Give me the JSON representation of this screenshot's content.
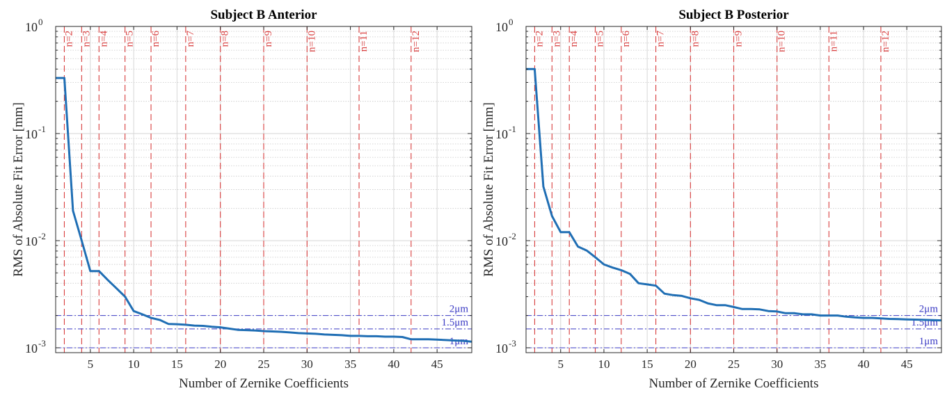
{
  "chart_data": [
    {
      "type": "line",
      "title": "Subject B Anterior",
      "xlabel": "Number of Zernike Coefficients",
      "ylabel": "RMS of Absolute Fit Error [mm]",
      "xlim": [
        1,
        49
      ],
      "ylim": [
        0.0009,
        1
      ],
      "yscale": "log",
      "grid": true,
      "xticks": [
        5,
        10,
        15,
        20,
        25,
        30,
        35,
        40,
        45
      ],
      "ytick_labels": [
        {
          "base": "10",
          "exp": "-3"
        },
        {
          "base": "10",
          "exp": "-2"
        },
        {
          "base": "10",
          "exp": "-1"
        },
        {
          "base": "10",
          "exp": "0"
        }
      ],
      "orders": [
        {
          "x": 2,
          "label": "n=2"
        },
        {
          "x": 4,
          "label": "n=3"
        },
        {
          "x": 6,
          "label": "n=4"
        },
        {
          "x": 9,
          "label": "n=5"
        },
        {
          "x": 12,
          "label": "n=6"
        },
        {
          "x": 16,
          "label": "n=7"
        },
        {
          "x": 20,
          "label": "n=8"
        },
        {
          "x": 25,
          "label": "n=9"
        },
        {
          "x": 30,
          "label": "n=10"
        },
        {
          "x": 36,
          "label": "n=11"
        },
        {
          "x": 42,
          "label": "n=12"
        }
      ],
      "thresholds": [
        {
          "y": 0.002,
          "label": "2μm"
        },
        {
          "y": 0.0015,
          "label": "1.5μm"
        },
        {
          "y": 0.001,
          "label": "1μm"
        }
      ],
      "series": [
        {
          "x": [
            1,
            2,
            3,
            4,
            5,
            6,
            7,
            8,
            9,
            10,
            11,
            12,
            13,
            14,
            15,
            16,
            17,
            18,
            19,
            20,
            21,
            22,
            23,
            24,
            25,
            26,
            27,
            28,
            29,
            30,
            31,
            32,
            33,
            34,
            35,
            36,
            37,
            38,
            39,
            40,
            41,
            42,
            43,
            44,
            45,
            46,
            47,
            48,
            49
          ],
          "values": [
            0.33,
            0.33,
            0.019,
            0.01,
            0.0052,
            0.0052,
            0.0043,
            0.0036,
            0.003,
            0.0022,
            0.00205,
            0.0019,
            0.00182,
            0.00167,
            0.00166,
            0.00164,
            0.00161,
            0.0016,
            0.00157,
            0.00155,
            0.00151,
            0.00147,
            0.00146,
            0.00145,
            0.00143,
            0.00142,
            0.00141,
            0.00139,
            0.00137,
            0.00136,
            0.00135,
            0.00133,
            0.00132,
            0.00131,
            0.00129,
            0.00129,
            0.00128,
            0.00128,
            0.00127,
            0.00127,
            0.00126,
            0.0012,
            0.0012,
            0.0012,
            0.00119,
            0.00118,
            0.00117,
            0.00116,
            0.00114
          ]
        }
      ]
    },
    {
      "type": "line",
      "title": "Subject B Posterior",
      "xlabel": "Number of Zernike Coefficients",
      "ylabel": "RMS of Absolute Fit Error [mm]",
      "xlim": [
        1,
        49
      ],
      "ylim": [
        0.0009,
        1
      ],
      "yscale": "log",
      "grid": true,
      "xticks": [
        5,
        10,
        15,
        20,
        25,
        30,
        35,
        40,
        45
      ],
      "ytick_labels": [
        {
          "base": "10",
          "exp": "-3"
        },
        {
          "base": "10",
          "exp": "-2"
        },
        {
          "base": "10",
          "exp": "-1"
        },
        {
          "base": "10",
          "exp": "0"
        }
      ],
      "orders": [
        {
          "x": 2,
          "label": "n=2"
        },
        {
          "x": 4,
          "label": "n=3"
        },
        {
          "x": 6,
          "label": "n=4"
        },
        {
          "x": 9,
          "label": "n=5"
        },
        {
          "x": 12,
          "label": "n=6"
        },
        {
          "x": 16,
          "label": "n=7"
        },
        {
          "x": 20,
          "label": "n=8"
        },
        {
          "x": 25,
          "label": "n=9"
        },
        {
          "x": 30,
          "label": "n=10"
        },
        {
          "x": 36,
          "label": "n=11"
        },
        {
          "x": 42,
          "label": "n=12"
        }
      ],
      "thresholds": [
        {
          "y": 0.002,
          "label": "2μm"
        },
        {
          "y": 0.0015,
          "label": "1.5μm"
        },
        {
          "y": 0.001,
          "label": "1μm"
        }
      ],
      "series": [
        {
          "x": [
            1,
            2,
            3,
            4,
            5,
            6,
            7,
            8,
            9,
            10,
            11,
            12,
            13,
            14,
            15,
            16,
            17,
            18,
            19,
            20,
            21,
            22,
            23,
            24,
            25,
            26,
            27,
            28,
            29,
            30,
            31,
            32,
            33,
            34,
            35,
            36,
            37,
            38,
            39,
            40,
            41,
            42,
            43,
            44,
            45,
            46,
            47,
            48,
            49
          ],
          "values": [
            0.4,
            0.4,
            0.032,
            0.017,
            0.012,
            0.012,
            0.0088,
            0.0081,
            0.007,
            0.006,
            0.0056,
            0.0053,
            0.0049,
            0.004,
            0.0039,
            0.0038,
            0.0032,
            0.0031,
            0.00305,
            0.0029,
            0.0028,
            0.0026,
            0.0025,
            0.0025,
            0.0024,
            0.0023,
            0.0023,
            0.00228,
            0.0022,
            0.00218,
            0.0021,
            0.0021,
            0.00205,
            0.00205,
            0.002,
            0.002,
            0.002,
            0.00195,
            0.00192,
            0.0019,
            0.0019,
            0.00188,
            0.00186,
            0.00185,
            0.00184,
            0.00183,
            0.00182,
            0.00181,
            0.0018
          ]
        }
      ]
    }
  ]
}
